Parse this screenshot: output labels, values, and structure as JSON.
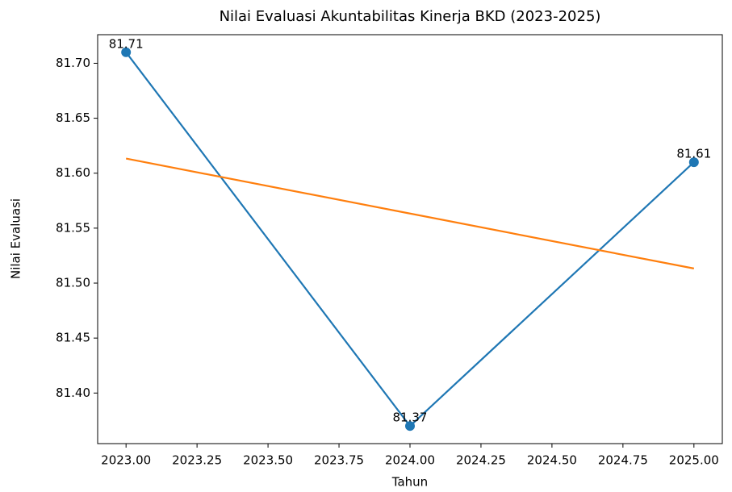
{
  "chart_data": {
    "type": "line",
    "title": "Nilai Evaluasi Akuntabilitas Kinerja BKD (2023-2025)",
    "xlabel": "Tahun",
    "ylabel": "Nilai Evaluasi",
    "x": [
      2023,
      2024,
      2025
    ],
    "series": [
      {
        "color": "#1f77b4",
        "marker": true,
        "data_labels": true,
        "values": [
          81.71,
          81.37,
          81.61
        ]
      },
      {
        "color": "#ff7f0e",
        "marker": false,
        "data_labels": false,
        "values": [
          81.6133,
          81.5633,
          81.5133
        ]
      }
    ],
    "xlim": [
      2022.9,
      2025.1
    ],
    "xticks": [
      {
        "value": 2023,
        "label": "2023.00"
      },
      2023.25,
      {
        "value": 2023.5,
        "label": "2023.50"
      },
      2023.75,
      {
        "value": 2024,
        "label": "2024.00"
      },
      2024.25,
      {
        "value": 2024.5,
        "label": "2024.50"
      },
      2024.75,
      {
        "value": 2025,
        "label": "2025.00"
      }
    ],
    "ylim": [
      81.354,
      81.726
    ],
    "yticks": [
      {
        "value": 81.4,
        "label": "81.40"
      },
      81.45,
      {
        "value": 81.5,
        "label": "81.50"
      },
      81.55,
      {
        "value": 81.6,
        "label": "81.60"
      },
      81.65,
      {
        "value": 81.7,
        "label": "81.70"
      }
    ]
  }
}
